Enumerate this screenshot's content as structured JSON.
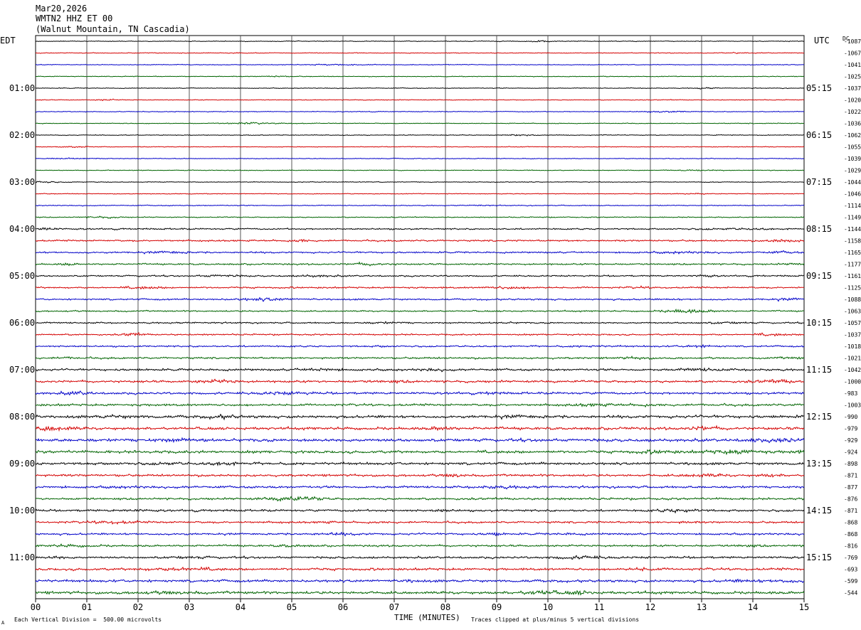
{
  "header": {
    "date": "Mar20,2026",
    "station": "WMTN2 HHZ ET 00",
    "location": "(Walnut Mountain, TN Cascadia)"
  },
  "left_axis_label": "EDT",
  "right_axis_label": "UTC",
  "dc_label": "DC",
  "footer": {
    "scale_note": "Each Vertical Division =  500.00 microvolts",
    "xlabel": "TIME (MINUTES)",
    "clip_note": "Traces clipped at plus/minus 5 vertical divisions",
    "corner_mark": "A"
  },
  "colors": {
    "trace_cycle": [
      "#000000",
      "#d40000",
      "#0000c8",
      "#006400"
    ],
    "grid": "#000000"
  },
  "chart_data": {
    "type": "line",
    "description_kind": "helicorder",
    "x_ticks": [
      "00",
      "01",
      "02",
      "03",
      "04",
      "05",
      "06",
      "07",
      "08",
      "09",
      "10",
      "11",
      "12",
      "13",
      "14",
      "15"
    ],
    "xlim": [
      0,
      15
    ],
    "edt_hour_labels": [
      "01:00",
      "02:00",
      "03:00",
      "04:00",
      "05:00",
      "06:00",
      "07:00",
      "08:00",
      "09:00",
      "10:00",
      "11:00"
    ],
    "utc_hour_labels": [
      "05:15",
      "06:15",
      "07:15",
      "08:15",
      "09:15",
      "10:15",
      "11:15",
      "12:15",
      "13:15",
      "14:15",
      "15:15"
    ],
    "trace_dc_offsets": [
      -1087,
      -1067,
      -1041,
      -1025,
      -1037,
      -1020,
      -1022,
      -1036,
      -1062,
      -1055,
      -1039,
      -1029,
      -1044,
      -1046,
      -1114,
      -1149,
      -1144,
      -1158,
      -1165,
      -1177,
      -1161,
      -1125,
      -1088,
      -1063,
      -1057,
      -1037,
      -1018,
      -1021,
      -1042,
      -1000,
      -983,
      -1003,
      -990,
      -979,
      -929,
      -924,
      -898,
      -871,
      -877,
      -876,
      -871,
      -868,
      -868,
      -816,
      -769,
      -693,
      -599,
      -544
    ],
    "trace_amplitude_levels": [
      1,
      1,
      1,
      1,
      1,
      1,
      1,
      1,
      1,
      1,
      1,
      1,
      1,
      1,
      1.2,
      1.3,
      2,
      2.2,
      2.2,
      2.2,
      2,
      2.2,
      2.2,
      2,
      2,
      2,
      2.2,
      2.4,
      2.8,
      3,
      3,
      3,
      3.6,
      3.6,
      4,
      3.6,
      3.4,
      3,
      3,
      2.8,
      2.8,
      2.6,
      2.6,
      2.6,
      2.8,
      3.2,
      3.4,
      3.6
    ]
  }
}
